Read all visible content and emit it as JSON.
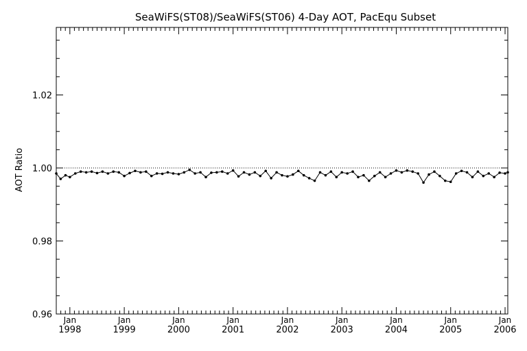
{
  "chart_data": {
    "type": "line",
    "title": "SeaWiFS(ST08)/SeaWiFS(ST06) 4-Day AOT, PacEqu Subset",
    "xlabel": "",
    "ylabel": "AOT Ratio",
    "ylim": [
      0.96,
      1.02
    ],
    "y_ticks": [
      0.96,
      0.98,
      1.0,
      1.02
    ],
    "y_tick_labels": [
      "0.96",
      "0.98",
      "1.00",
      "1.02"
    ],
    "y_axis_top": 1.0385,
    "x_ticks": [
      {
        "month": "Jan",
        "year": "1998"
      },
      {
        "month": "Jan",
        "year": "1999"
      },
      {
        "month": "Jan",
        "year": "2000"
      },
      {
        "month": "Jan",
        "year": "2001"
      },
      {
        "month": "Jan",
        "year": "2002"
      },
      {
        "month": "Jan",
        "year": "2003"
      },
      {
        "month": "Jan",
        "year": "2004"
      },
      {
        "month": "Jan",
        "year": "2005"
      },
      {
        "month": "Jan",
        "year": "2006"
      }
    ],
    "x_range_years": [
      1997.75,
      2006.05
    ],
    "reference_line": {
      "y": 1.0,
      "style": "dotted"
    },
    "grid": false,
    "series": [
      {
        "x": [
          1997.75,
          1997.83,
          1997.92,
          1998.0,
          1998.1,
          1998.2,
          1998.3,
          1998.4,
          1998.5,
          1998.6,
          1998.7,
          1998.8,
          1998.9,
          1999.0,
          1999.1,
          1999.2,
          1999.3,
          1999.4,
          1999.5,
          1999.6,
          1999.7,
          1999.8,
          1999.9,
          2000.0,
          2000.1,
          2000.2,
          2000.3,
          2000.4,
          2000.5,
          2000.6,
          2000.7,
          2000.8,
          2000.9,
          2001.0,
          2001.1,
          2001.2,
          2001.3,
          2001.4,
          2001.5,
          2001.6,
          2001.7,
          2001.8,
          2001.9,
          2002.0,
          2002.1,
          2002.2,
          2002.3,
          2002.4,
          2002.5,
          2002.6,
          2002.7,
          2002.8,
          2002.9,
          2003.0,
          2003.1,
          2003.2,
          2003.3,
          2003.4,
          2003.5,
          2003.6,
          2003.7,
          2003.8,
          2003.9,
          2004.0,
          2004.1,
          2004.2,
          2004.3,
          2004.4,
          2004.5,
          2004.6,
          2004.7,
          2004.8,
          2004.9,
          2005.0,
          2005.1,
          2005.2,
          2005.3,
          2005.4,
          2005.5,
          2005.6,
          2005.7,
          2005.8,
          2005.9,
          2006.0,
          2006.05
        ],
        "y": [
          0.9985,
          0.997,
          0.998,
          0.9975,
          0.9985,
          0.999,
          0.9988,
          0.999,
          0.9986,
          0.999,
          0.9985,
          0.999,
          0.9988,
          0.9978,
          0.9986,
          0.9992,
          0.9988,
          0.999,
          0.9978,
          0.9985,
          0.9984,
          0.9988,
          0.9985,
          0.9983,
          0.9988,
          0.9995,
          0.9985,
          0.9988,
          0.9975,
          0.9987,
          0.9988,
          0.999,
          0.9985,
          0.9993,
          0.9977,
          0.9988,
          0.9982,
          0.9988,
          0.9978,
          0.9992,
          0.9972,
          0.9988,
          0.998,
          0.9977,
          0.9982,
          0.9992,
          0.998,
          0.9972,
          0.9965,
          0.9988,
          0.998,
          0.999,
          0.9975,
          0.9988,
          0.9985,
          0.999,
          0.9975,
          0.998,
          0.9965,
          0.9978,
          0.9988,
          0.9975,
          0.9985,
          0.9993,
          0.9988,
          0.9993,
          0.999,
          0.9985,
          0.996,
          0.9982,
          0.999,
          0.9978,
          0.9965,
          0.9962,
          0.9985,
          0.9992,
          0.9988,
          0.9975,
          0.999,
          0.9978,
          0.9985,
          0.9975,
          0.9987,
          0.9985,
          0.9988
        ]
      }
    ]
  }
}
